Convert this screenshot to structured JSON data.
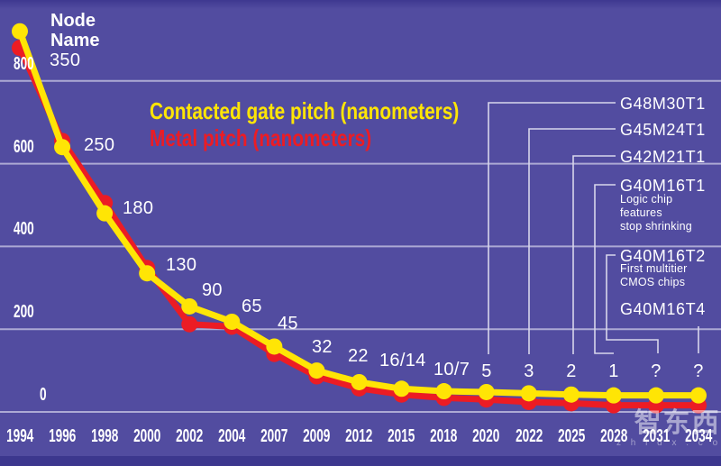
{
  "colors": {
    "background": "#524CA0",
    "gridline": "#ACA9D4",
    "connector": "#D8D6EC",
    "gate_yellow": "#FFE505",
    "metal_red": "#EC1C24",
    "text_white": "#FFFFFF"
  },
  "header": {
    "line1": "Node",
    "line2": "Name"
  },
  "legend": {
    "gate": "Contacted gate pitch (nanometers)",
    "metal": "Metal pitch (nanometers)"
  },
  "watermark": {
    "logo_text": "智东西",
    "domain": "z h i d x . c o m"
  },
  "chart_data": {
    "type": "line",
    "title": "",
    "xlabel": "",
    "ylabel": "",
    "ylim": [
      0,
      800
    ],
    "grid": true,
    "x": [
      1994,
      1996,
      1998,
      2000,
      2002,
      2004,
      2007,
      2009,
      2012,
      2015,
      2018,
      2020,
      2022,
      2025,
      2028,
      2031,
      2034
    ],
    "x_labels": [
      "1994",
      "1996",
      "1998",
      "2000",
      "2002",
      "2004",
      "2007",
      "2009",
      "2012",
      "2015",
      "2018",
      "2020",
      "2022",
      "2025",
      "2028",
      "2031",
      "2034"
    ],
    "y_ticks": [
      800,
      600,
      400,
      200,
      0
    ],
    "point_labels": [
      "350",
      "250",
      "180",
      "130",
      "90",
      "65",
      "45",
      "32",
      "22",
      "16/14",
      "10/7",
      "5",
      "3",
      "2",
      "1",
      "?",
      "?"
    ],
    "series": [
      {
        "name": "Contacted gate pitch (nanometers)",
        "color": "#FFE505",
        "values": [
          920,
          640,
          480,
          335,
          255,
          218,
          158,
          100,
          72,
          56,
          50,
          48,
          45,
          42,
          40,
          40,
          40
        ]
      },
      {
        "name": "Metal pitch (nanometers)",
        "color": "#EC1C24",
        "values": [
          880,
          655,
          505,
          348,
          212,
          206,
          140,
          86,
          57,
          42,
          34,
          30,
          24,
          21,
          16,
          16,
          16
        ]
      }
    ],
    "annotations": [
      {
        "code": "G48M30T1",
        "target_year": 2020
      },
      {
        "code": "G45M24T1",
        "target_year": 2022
      },
      {
        "code": "G42M21T1",
        "target_year": 2025
      },
      {
        "code": "G40M16T1",
        "target_year": 2028,
        "note_lines": [
          "Logic chip",
          "features",
          "stop shrinking"
        ]
      },
      {
        "code": "G40M16T2",
        "target_year": 2031,
        "note_lines": [
          "First multitier",
          "CMOS chips"
        ]
      },
      {
        "code": "G40M16T4",
        "target_year": 2034
      }
    ]
  }
}
